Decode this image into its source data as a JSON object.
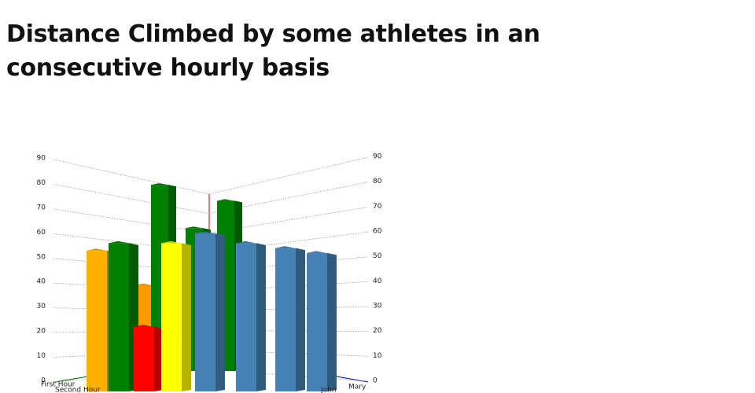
{
  "chart_data": {
    "type": "bar3d",
    "title": "Distance Climbed by some athletes in an consecutive hourly basis",
    "categories": [
      null,
      null,
      null,
      null,
      null,
      null,
      "John",
      "Mary"
    ],
    "depth_categories": [
      "First Hour",
      "Second Hour"
    ],
    "series": [
      {
        "values": [
          54,
          57,
          23,
          57,
          61,
          57,
          55,
          53
        ],
        "colors": [
          "#ffb000",
          "#008000",
          "#ff0000",
          "#ffff00",
          "#4682b4",
          "#4682b4",
          "#4682b4",
          "#4682b4"
        ]
      },
      {
        "values": [
          37,
          81,
          62,
          74,
          null,
          null,
          null,
          null
        ],
        "colors": [
          "#ff9900",
          "#008000",
          "#008000",
          "#008000",
          null,
          null,
          null,
          null
        ]
      }
    ],
    "ylim": [
      0,
      90
    ],
    "yticks": [
      0,
      10,
      20,
      30,
      40,
      50,
      60,
      70,
      80,
      90
    ],
    "grid": true
  }
}
